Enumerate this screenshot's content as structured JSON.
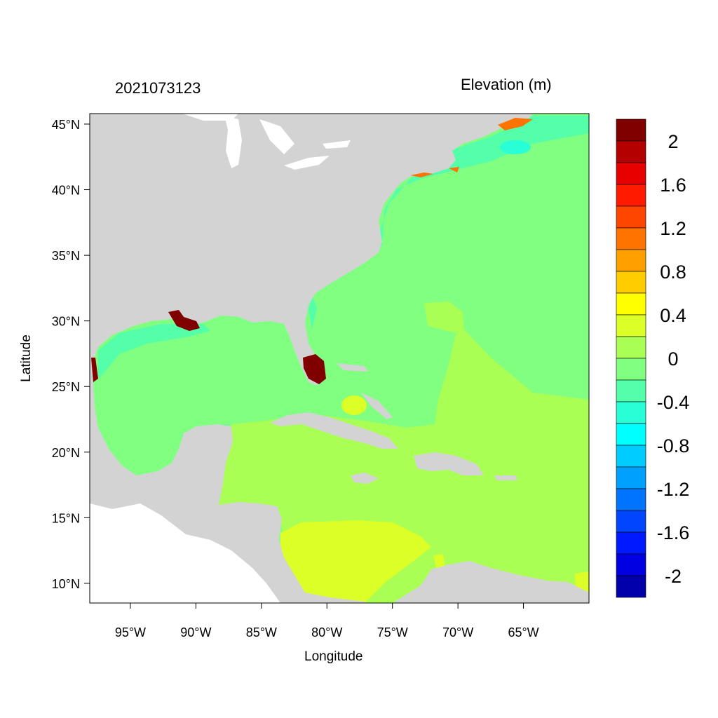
{
  "title_left": "2021073123",
  "title_right": "Elevation (m)",
  "xlabel": "Longitude",
  "ylabel": "Latitude",
  "lon_ticks": [
    {
      "v": -95,
      "label": "95°W"
    },
    {
      "v": -90,
      "label": "90°W"
    },
    {
      "v": -85,
      "label": "85°W"
    },
    {
      "v": -80,
      "label": "80°W"
    },
    {
      "v": -75,
      "label": "75°W"
    },
    {
      "v": -70,
      "label": "70°W"
    },
    {
      "v": -65,
      "label": "65°W"
    }
  ],
  "lat_ticks": [
    {
      "v": 45,
      "label": "45°N"
    },
    {
      "v": 40,
      "label": "40°N"
    },
    {
      "v": 35,
      "label": "35°N"
    },
    {
      "v": 30,
      "label": "30°N"
    },
    {
      "v": 25,
      "label": "25°N"
    },
    {
      "v": 20,
      "label": "20°N"
    },
    {
      "v": 15,
      "label": "15°N"
    },
    {
      "v": 10,
      "label": "10°N"
    }
  ],
  "map_extent": {
    "lon": [
      -98.1,
      -60.0
    ],
    "lat": [
      8.5,
      45.8
    ]
  },
  "colors": {
    "land": "#d3d3d3",
    "ocean_zero": "#80ff80",
    "ocean_pos": "#aaff55",
    "ocean_pos2": "#dcff28",
    "ocean_neg": "#55ffaa",
    "ocean_neg2": "#28ffd7",
    "nodata": "#ffffff"
  },
  "colorbar": {
    "colors": [
      "#800000",
      "#b40000",
      "#e60000",
      "#ff1a00",
      "#ff4600",
      "#ff7300",
      "#ffa000",
      "#ffcc00",
      "#ffff00",
      "#dcff28",
      "#aaff55",
      "#80ff80",
      "#55ffaa",
      "#28ffd7",
      "#00ffff",
      "#00ccff",
      "#00a0ff",
      "#0073ff",
      "#0046ff",
      "#001aff",
      "#0000e0",
      "#0000aa"
    ],
    "labels": [
      "2",
      "1.6",
      "1.2",
      "0.8",
      "0.4",
      "0",
      "-0.4",
      "-0.8",
      "-1.2",
      "-1.6",
      "-2"
    ]
  }
}
